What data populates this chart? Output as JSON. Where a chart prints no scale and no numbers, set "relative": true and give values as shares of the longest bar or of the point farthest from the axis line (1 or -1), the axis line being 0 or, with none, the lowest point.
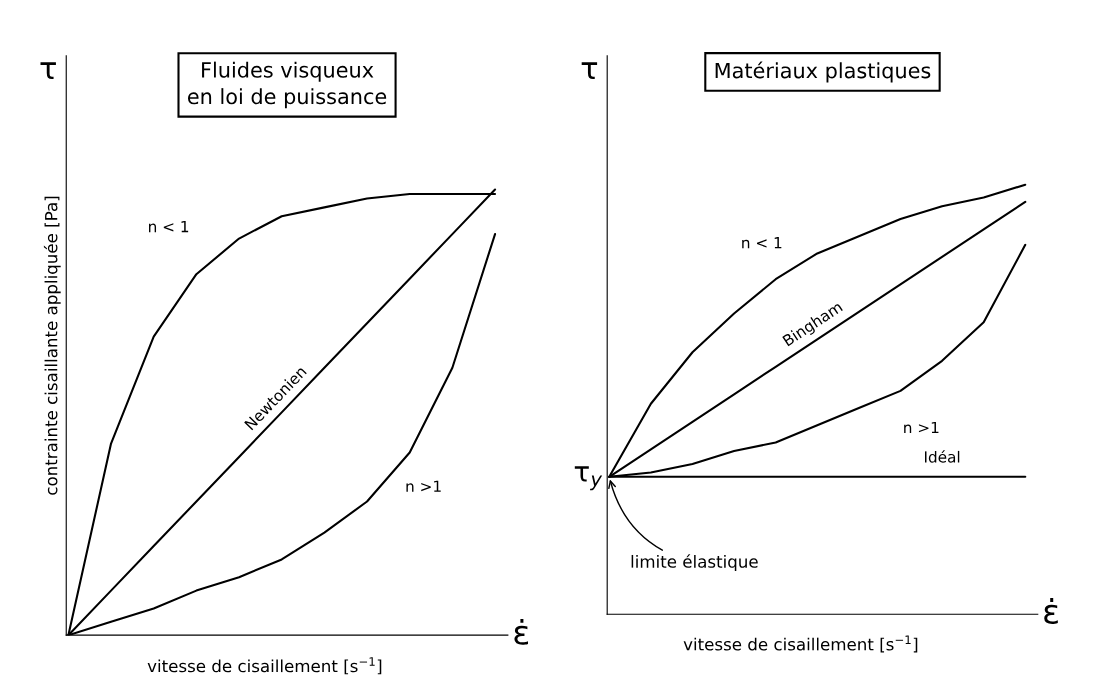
{
  "chart_data": [
    {
      "type": "line",
      "relative": true,
      "title": "Fluides visqueux",
      "subtitle": "en loi de puissance",
      "ylabel": "contrainte cisaillante appliquée [Pa]",
      "xlabel": "vitesse de cisaillement [s$^{−1}$]",
      "annotations": [
        "τ",
        "ε̇"
      ],
      "categories": [
        null,
        null,
        null,
        null,
        null,
        null,
        null,
        null,
        null,
        null,
        null
      ],
      "series": [
        {
          "name": "n < 1",
          "color": "#000000",
          "values": [
            0,
            0.43,
            0.67,
            0.81,
            0.89,
            0.94,
            0.96,
            0.98,
            0.99,
            0.99,
            0.99
          ]
        },
        {
          "name": "Newtonien",
          "color": "#000000",
          "values": [
            0,
            0.1,
            0.2,
            0.3,
            0.4,
            0.5,
            0.6,
            0.7,
            0.8,
            0.9,
            1.0
          ]
        },
        {
          "name": "n >1",
          "color": "#000000",
          "values": [
            0,
            0.03,
            0.06,
            0.1,
            0.13,
            0.17,
            0.23,
            0.3,
            0.41,
            0.6,
            0.9
          ]
        }
      ]
    },
    {
      "type": "line",
      "relative": true,
      "title": "Matériaux plastiques",
      "xlabel": "vitesse de cisaillement [s$^{−1}$]",
      "annotations": [
        "τ",
        "ε̇",
        "τ$_{y}$",
        "limite élastique"
      ],
      "categories": [
        null,
        null,
        null,
        null,
        null,
        null,
        null,
        null,
        null,
        null,
        null
      ],
      "series": [
        {
          "name": "n < 1",
          "color": "#000000",
          "values": [
            0.32,
            0.49,
            0.61,
            0.7,
            0.78,
            0.84,
            0.88,
            0.92,
            0.95,
            0.97,
            1.0
          ]
        },
        {
          "name": "Bingham",
          "color": "#000000",
          "values": [
            0.32,
            0.384,
            0.448,
            0.512,
            0.576,
            0.64,
            0.704,
            0.768,
            0.832,
            0.896,
            0.96
          ]
        },
        {
          "name": "n >1",
          "color": "#000000",
          "values": [
            0.32,
            0.33,
            0.35,
            0.38,
            0.4,
            0.44,
            0.48,
            0.52,
            0.59,
            0.68,
            0.86
          ]
        },
        {
          "name": "Idéal",
          "color": "#000000",
          "values": [
            0.32,
            0.32,
            0.32,
            0.32,
            0.32,
            0.32,
            0.32,
            0.32,
            0.32,
            0.32,
            0.32
          ]
        }
      ]
    }
  ]
}
